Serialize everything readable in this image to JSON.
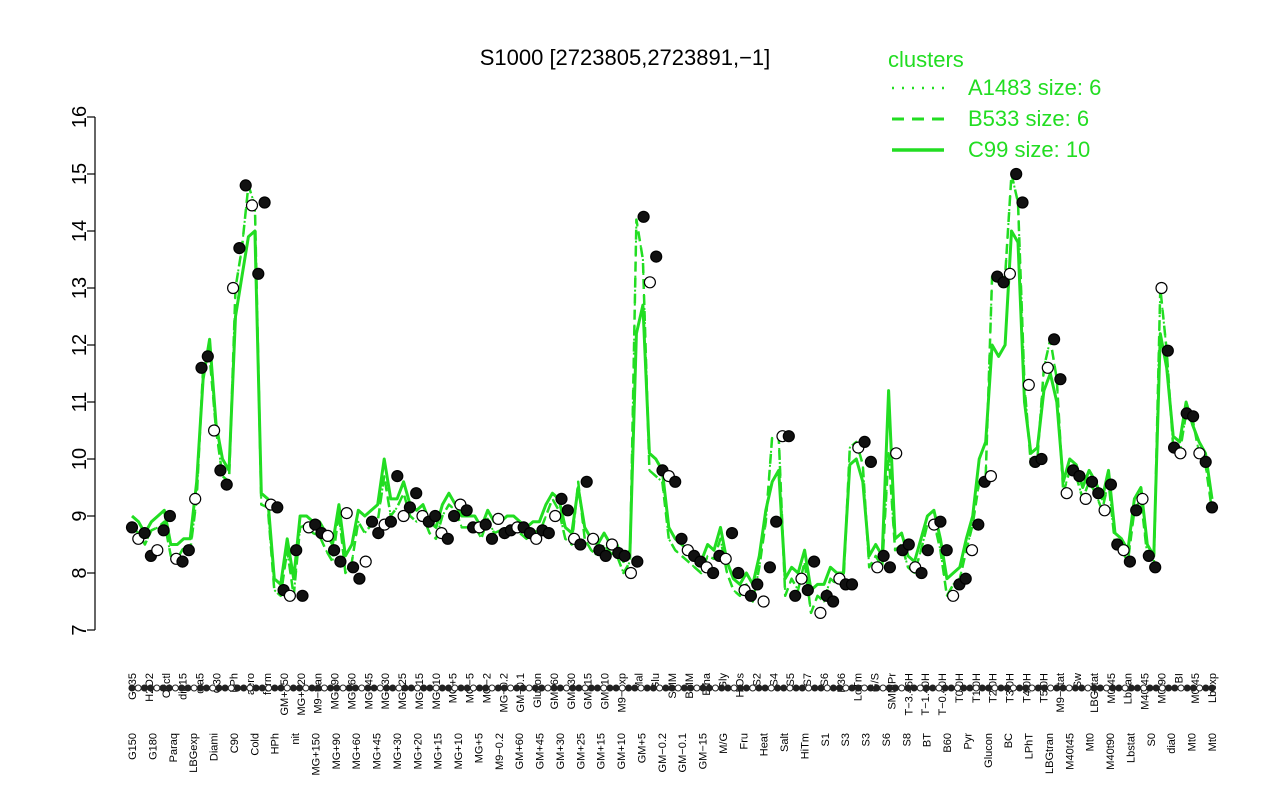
{
  "chart_data": {
    "type": "line",
    "title": "S1000 [2723805,2723891,−1]",
    "xlabel": "",
    "ylabel": "",
    "ylim": [
      7,
      16
    ],
    "yticks": [
      7,
      8,
      9,
      10,
      11,
      12,
      13,
      14,
      15,
      16
    ],
    "grid": false,
    "legend": {
      "title": "clusters",
      "placement": "top-right",
      "entries": [
        {
          "label": "A1483 size: 6",
          "style": "dotted"
        },
        {
          "label": "B533 size: 6",
          "style": "dashed"
        },
        {
          "label": "C99 size: 10",
          "style": "solid"
        }
      ]
    },
    "colors": {
      "lines": "#22dd22",
      "points_fill_dark": "#111111",
      "points_fill_light": "#ffffff",
      "legend": "#22dd22"
    },
    "x_labels_upper": [
      "G135",
      "H2O2",
      "Oxctl",
      "dia15",
      "dia5",
      "C30",
      "LPh",
      "aero",
      "ferm",
      "GM+150",
      "MG+120",
      "M9−tran",
      "MG+90",
      "MG+60",
      "MG+45",
      "MG+30",
      "MG+25",
      "MG+15",
      "MG+10",
      "MG+5",
      "MG−5",
      "MG−2",
      "MG−0.2",
      "GM−0.1",
      "Glucon",
      "GM−60",
      "GM−30",
      "GM−15",
      "GM−10",
      "M9−exp",
      "Mal",
      "Glu",
      "SMM",
      "BMM",
      "Etha",
      "Gly",
      "HiOs",
      "S2",
      "S4",
      "S5",
      "S7",
      "S6",
      "B36",
      "LoTm",
      "G/S",
      "SMMPr",
      "T−3.46H",
      "T−1.40H",
      "T−0.40H",
      "T0.0H",
      "T1.0H",
      "T2.0H",
      "T3.0H",
      "T4.0H",
      "T5.0H",
      "M9−stat",
      "Sw",
      "LBGstat",
      "M0t45",
      "Lbtran",
      "M40t45",
      "M0t90",
      "BI",
      "M0t45",
      "Lbexp"
    ],
    "x_labels_lower": [
      "G150",
      "G180",
      "Paraq",
      "LBGexp",
      "Diami",
      "C90",
      "Cold",
      "HPh",
      "nit",
      "MG+150",
      "MG+90",
      "MG+60",
      "MG+45",
      "MG+30",
      "MG+20",
      "MG+15",
      "MG+10",
      "MG+5",
      "M9−0.2",
      "GM+60",
      "GM+45",
      "GM+30",
      "GM+25",
      "GM+15",
      "GM+10",
      "GM+5",
      "GM−0.2",
      "GM−0.1",
      "GM−15",
      "M/G",
      "Fru",
      "Heat",
      "Salt",
      "HiTm",
      "S1",
      "S3",
      "S3",
      "S6",
      "S8",
      "BT",
      "B60",
      "Pyr",
      "Glucon",
      "BC",
      "LPhT",
      "LBGtran",
      "M40t45",
      "Mt0",
      "M40t90",
      "Lbstat",
      "S0",
      "dia0",
      "Mt0",
      "Mt0"
    ],
    "series": [
      {
        "name": "A1483 size: 6",
        "style": "dotted",
        "values": [
          8.8,
          8.7,
          8.5,
          8.75,
          8.8,
          8.9,
          8.3,
          8.25,
          8.45,
          8.4,
          9.3,
          11.6,
          11.8,
          10.5,
          9.7,
          9.6,
          13.0,
          13.7,
          14.8,
          14.45,
          9.2,
          9.15,
          7.7,
          7.6,
          8.4,
          7.6,
          8.8,
          8.85,
          8.7,
          8.65,
          8.4,
          8.2,
          9.05,
          8.0,
          8.2,
          8.9,
          8.7,
          8.85,
          8.9,
          9.7,
          9.0,
          9.15,
          9.4,
          9.0,
          8.9,
          9.0,
          8.7,
          8.6,
          9.0,
          9.2,
          9.1,
          8.8,
          8.8,
          8.85,
          8.6,
          8.95,
          8.7,
          8.75,
          8.8,
          8.8,
          8.7,
          8.6,
          8.75,
          8.7,
          9.0,
          9.3,
          9.1,
          8.6,
          8.5,
          9.6,
          8.6,
          8.4,
          8.3,
          8.5,
          8.35,
          8.3,
          8.0,
          8.2,
          14.2,
          13.5,
          9.8,
          9.7,
          9.6,
          8.6,
          8.4,
          8.3,
          8.2,
          8.1,
          8.0,
          8.3,
          8.25,
          8.6,
          8.0,
          7.7,
          7.6,
          7.8,
          7.5,
          8.1,
          8.9,
          10.4,
          10.4,
          7.6,
          7.9,
          7.7,
          8.2,
          7.3,
          7.6,
          7.5,
          7.9,
          7.8,
          7.8,
          10.2,
          10.3,
          9.9,
          8.1,
          8.3,
          8.1,
          10.1,
          8.4,
          8.5,
          8.1,
          8.0,
          8.4,
          8.85,
          8.9,
          8.4,
          7.6,
          7.8,
          7.9,
          8.4,
          8.85,
          9.6,
          9.7,
          13.2,
          13.1,
          13.2,
          15.0,
          14.5,
          11.3,
          9.9,
          10.0,
          11.6,
          12.1,
          11.4,
          9.4,
          9.8,
          9.7,
          9.3,
          9.6,
          9.4,
          9.1,
          9.6,
          8.5,
          8.4,
          8.2,
          9.1,
          9.3,
          8.3,
          8.1,
          13.0,
          11.9,
          10.2,
          10.1,
          10.8,
          10.7,
          10.1,
          9.9,
          9.1
        ]
      },
      {
        "name": "B533 size: 6",
        "style": "dashed",
        "values": [
          8.8,
          8.7,
          8.5,
          8.75,
          8.8,
          8.9,
          8.3,
          8.25,
          8.45,
          8.4,
          9.3,
          11.6,
          11.8,
          10.5,
          9.7,
          9.6,
          13.0,
          13.7,
          14.8,
          14.45,
          9.2,
          9.15,
          7.7,
          7.6,
          8.4,
          7.6,
          8.8,
          8.85,
          8.7,
          8.65,
          8.4,
          8.2,
          9.05,
          8.0,
          8.2,
          8.9,
          8.7,
          8.85,
          8.9,
          9.7,
          9.0,
          9.15,
          9.4,
          9.0,
          8.9,
          9.0,
          8.7,
          8.6,
          9.0,
          9.2,
          9.1,
          8.8,
          8.8,
          8.85,
          8.6,
          8.95,
          8.7,
          8.75,
          8.8,
          8.8,
          8.7,
          8.6,
          8.75,
          8.7,
          9.0,
          9.3,
          9.1,
          8.6,
          8.5,
          9.6,
          8.6,
          8.4,
          8.3,
          8.5,
          8.35,
          8.3,
          8.0,
          8.2,
          14.2,
          13.5,
          9.8,
          9.7,
          9.6,
          8.6,
          8.4,
          8.3,
          8.2,
          8.1,
          8.0,
          8.3,
          8.25,
          8.6,
          8.0,
          7.7,
          7.6,
          7.8,
          7.5,
          8.1,
          8.9,
          10.4,
          10.4,
          7.6,
          7.9,
          7.7,
          8.2,
          7.3,
          7.6,
          7.5,
          7.9,
          7.8,
          7.8,
          10.2,
          10.3,
          9.9,
          8.1,
          8.3,
          8.1,
          10.1,
          8.4,
          8.5,
          8.1,
          8.0,
          8.4,
          8.85,
          8.9,
          8.4,
          7.6,
          7.8,
          7.9,
          8.4,
          8.85,
          9.6,
          9.7,
          13.2,
          13.1,
          13.2,
          15.0,
          14.5,
          11.3,
          9.9,
          10.0,
          11.6,
          12.1,
          11.4,
          9.4,
          9.8,
          9.7,
          9.3,
          9.6,
          9.4,
          9.1,
          9.6,
          8.5,
          8.4,
          8.2,
          9.1,
          9.3,
          8.3,
          8.1,
          13.0,
          11.9,
          10.2,
          10.1,
          10.8,
          10.7,
          10.1,
          9.9,
          9.1
        ]
      },
      {
        "name": "C99 size: 10",
        "style": "solid",
        "values": [
          9.0,
          8.9,
          8.7,
          8.9,
          9.0,
          9.1,
          8.5,
          8.5,
          8.6,
          8.6,
          9.6,
          11.4,
          12.1,
          10.6,
          10.0,
          9.8,
          12.5,
          13.2,
          13.9,
          14.0,
          9.4,
          9.3,
          7.9,
          7.8,
          8.6,
          7.9,
          9.0,
          9.0,
          8.9,
          8.9,
          8.7,
          8.5,
          9.2,
          8.3,
          8.5,
          9.1,
          9.0,
          9.1,
          9.2,
          10.0,
          9.3,
          9.3,
          9.6,
          9.2,
          9.1,
          9.2,
          8.9,
          8.8,
          9.2,
          9.4,
          9.2,
          9.0,
          9.0,
          9.0,
          8.8,
          9.1,
          8.9,
          8.9,
          9.0,
          9.0,
          8.9,
          8.8,
          8.9,
          8.9,
          9.2,
          9.4,
          9.3,
          8.8,
          8.7,
          9.5,
          8.8,
          8.6,
          8.5,
          8.7,
          8.5,
          8.5,
          8.2,
          8.4,
          12.2,
          12.7,
          10.1,
          10.0,
          9.8,
          8.8,
          8.6,
          8.5,
          8.4,
          8.3,
          8.2,
          8.5,
          8.4,
          8.8,
          8.2,
          7.9,
          7.8,
          8.0,
          7.8,
          8.3,
          9.1,
          9.6,
          9.8,
          7.9,
          8.1,
          8.0,
          8.4,
          7.7,
          7.8,
          7.8,
          8.1,
          8.0,
          8.0,
          9.9,
          10.0,
          9.6,
          8.3,
          8.5,
          8.3,
          11.2,
          8.6,
          8.7,
          8.3,
          8.2,
          8.6,
          9.0,
          9.1,
          8.6,
          7.9,
          8.0,
          8.1,
          8.6,
          9.0,
          10.0,
          10.3,
          12.0,
          11.8,
          12.0,
          14.0,
          13.8,
          11.0,
          10.1,
          10.2,
          11.2,
          11.5,
          11.0,
          9.6,
          10.0,
          9.9,
          9.5,
          9.8,
          9.6,
          9.3,
          9.8,
          8.7,
          8.6,
          8.4,
          9.3,
          9.5,
          8.5,
          8.3,
          12.2,
          11.6,
          10.4,
          10.3,
          11.0,
          10.6,
          10.3,
          10.1,
          9.3
        ]
      }
    ],
    "points": [
      8.8,
      8.6,
      8.7,
      8.3,
      8.4,
      8.75,
      9.0,
      8.25,
      8.2,
      8.4,
      9.3,
      11.6,
      11.8,
      10.5,
      9.8,
      9.55,
      13.0,
      13.7,
      14.8,
      14.45,
      13.25,
      14.5,
      9.2,
      9.15,
      7.7,
      7.6,
      8.4,
      7.6,
      8.8,
      8.85,
      8.7,
      8.65,
      8.4,
      8.2,
      9.05,
      8.1,
      7.9,
      8.2,
      8.9,
      8.7,
      8.85,
      8.9,
      9.7,
      9.0,
      9.15,
      9.4,
      9.0,
      8.9,
      9.0,
      8.7,
      8.6,
      9.0,
      9.2,
      9.1,
      8.8,
      8.8,
      8.85,
      8.6,
      8.95,
      8.7,
      8.75,
      8.8,
      8.8,
      8.7,
      8.6,
      8.75,
      8.7,
      9.0,
      9.3,
      9.1,
      8.6,
      8.5,
      9.6,
      8.6,
      8.4,
      8.3,
      8.5,
      8.35,
      8.3,
      8.0,
      8.2,
      14.25,
      13.1,
      13.55,
      9.8,
      9.7,
      9.6,
      8.6,
      8.4,
      8.3,
      8.2,
      8.1,
      8.0,
      8.3,
      8.25,
      8.7,
      8.0,
      7.7,
      7.6,
      7.8,
      7.5,
      8.1,
      8.9,
      10.4,
      10.4,
      7.6,
      7.9,
      7.7,
      8.2,
      7.3,
      7.6,
      7.5,
      7.9,
      7.8,
      7.8,
      10.2,
      10.3,
      9.95,
      8.1,
      8.3,
      8.1,
      10.1,
      8.4,
      8.5,
      8.1,
      8.0,
      8.4,
      8.85,
      8.9,
      8.4,
      7.6,
      7.8,
      7.9,
      8.4,
      8.85,
      9.6,
      9.7,
      13.2,
      13.1,
      13.25,
      15.0,
      14.5,
      11.3,
      9.95,
      10.0,
      11.6,
      12.1,
      11.4,
      9.4,
      9.8,
      9.7,
      9.3,
      9.6,
      9.4,
      9.1,
      9.55,
      8.5,
      8.4,
      8.2,
      9.1,
      9.3,
      8.3,
      8.1,
      13.0,
      11.9,
      10.2,
      10.1,
      10.8,
      10.75,
      10.1,
      9.95,
      9.15
    ]
  }
}
